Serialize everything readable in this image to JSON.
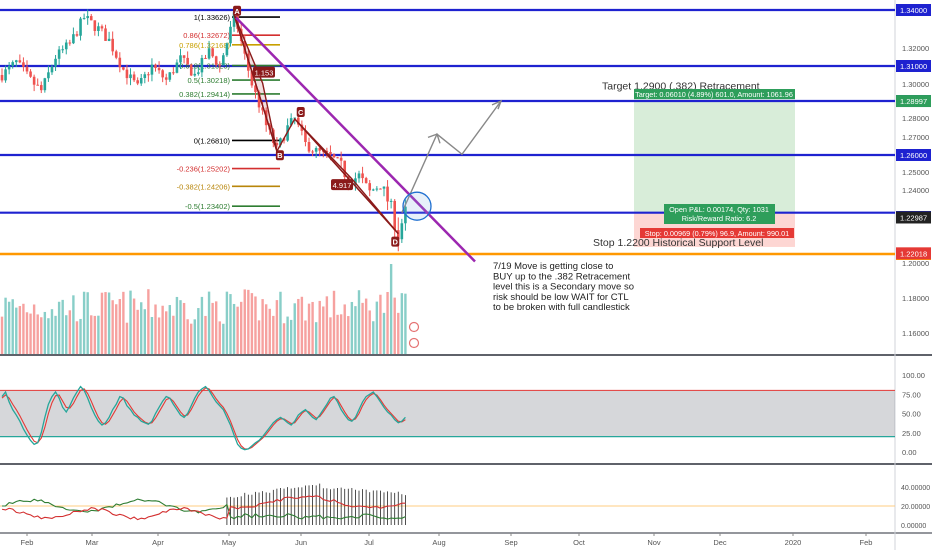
{
  "chart_data": {
    "type": "candlestick",
    "symbol_pair": "GBP/USD",
    "x_axis_labels": [
      "Feb",
      "Mar",
      "Apr",
      "May",
      "Jun",
      "Jul",
      "Aug",
      "Sep",
      "Oct",
      "Nov",
      "Dec",
      "2020",
      "Feb"
    ],
    "price_axis_ticks": [
      "1.34000",
      "1.32000",
      "1.31000",
      "1.30000",
      "1.29000",
      "1.28000",
      "1.27000",
      "1.26000",
      "1.25000",
      "1.24000",
      "1.23000",
      "1.22000",
      "1.20000",
      "1.18000",
      "1.16000"
    ],
    "price_range": [
      1.148,
      1.348
    ],
    "horizontal_levels": [
      {
        "price": 1.34,
        "label": "1.34000",
        "color": "#1e22d0"
      },
      {
        "price": 1.31,
        "label": "1.31000",
        "color": "#1e22d0"
      },
      {
        "price": 1.29,
        "label": "1.29000",
        "color": "#1e22d0"
      },
      {
        "price": 1.26,
        "label": "1.26000",
        "color": "#1e22d0"
      },
      {
        "price": 1.2316,
        "label": "1.23161",
        "color": "#1e22d0"
      },
      {
        "price": 1.22,
        "label": "1.22000",
        "color": "#ff9800"
      }
    ],
    "price_badges": [
      {
        "label": "1.28997",
        "price": 1.28997,
        "color": "#2e9e5b"
      },
      {
        "label": "1.23000",
        "price": 1.23,
        "color": "#1e22d0"
      },
      {
        "label": "1.22987",
        "price": 1.22987,
        "color": "#222222"
      },
      {
        "label": "1.22018",
        "price": 1.22018,
        "color": "#e53935"
      }
    ],
    "fibonacci": {
      "levels": [
        {
          "label": "1(1.33626)",
          "price": 1.33626,
          "color": "#000000"
        },
        {
          "label": "0.86(1.32672)",
          "price": 1.32672,
          "color": "#d32f2f"
        },
        {
          "label": "0.786(1.32168)",
          "price": 1.32168,
          "color": "#c8a000"
        },
        {
          "label": "0.618(1.31023)",
          "price": 1.31023,
          "color": "#2e7d32"
        },
        {
          "label": "0.5(1.30218)",
          "price": 1.30218,
          "color": "#2e7d32"
        },
        {
          "label": "0.382(1.29414)",
          "price": 1.29414,
          "color": "#2e7d32"
        },
        {
          "label": "0(1.26810)",
          "price": 1.2681,
          "color": "#000000"
        },
        {
          "label": "-0.236(1.25202)",
          "price": 1.25202,
          "color": "#d32f2f"
        },
        {
          "label": "-0.382(1.24206)",
          "price": 1.24206,
          "color": "#b8860b"
        },
        {
          "label": "-0.5(1.23402)",
          "price": 1.23402,
          "color": "#2e7d32"
        }
      ]
    },
    "pattern_points": [
      {
        "label": "A",
        "price": 1.3375
      },
      {
        "label": "B",
        "price": 1.2621
      },
      {
        "label": "C",
        "price": 1.2795
      },
      {
        "label": "D",
        "price": 1.2255
      }
    ],
    "pattern_ratios": [
      "1.153",
      "4.917"
    ],
    "trade": {
      "target_text": "Target: 0.06010 (4.89%) 601.0, Amount: 1061.96",
      "open_text": "Open P&L: 0.00174, Qty: 1031",
      "rr_text": "Risk/Reward Ratio: 6.2",
      "stop_text": "Stop: 0.00969 (0.79%) 96.9, Amount: 990.01",
      "entry": 1.2316,
      "target": 1.2917,
      "stop": 1.2219
    },
    "annotations": {
      "target_label": "Target 1.2900 (.382) Retracement",
      "stop_label": "Stop 1.2200 Historical Support Level",
      "note": [
        "7/19 Move is getting close to",
        "BUY up to the .382 Retracement",
        "level this is a Secondary move so",
        "risk should be low WAIT for CTL",
        "to be broken with full candlestick"
      ]
    },
    "stochastic": {
      "axis_ticks": [
        "100.00",
        "75.00",
        "50.00",
        "25.00",
        "0.00"
      ],
      "overbought": 80,
      "oversold": 20,
      "k": [
        72,
        78,
        65,
        55,
        48,
        40,
        30,
        22,
        15,
        10,
        12,
        25,
        45,
        62,
        72,
        78,
        70,
        58,
        52,
        60,
        70,
        78,
        85,
        80,
        70,
        58,
        48,
        40,
        35,
        38,
        45,
        55,
        62,
        72,
        70,
        60,
        55,
        48,
        45,
        40,
        38,
        36,
        40,
        50,
        58,
        66,
        72,
        70,
        62,
        55,
        48,
        45,
        50,
        60,
        70,
        78,
        82,
        85,
        80,
        72,
        65,
        60,
        55,
        45,
        35,
        22,
        10,
        5,
        3,
        4,
        8,
        12,
        15,
        20,
        26,
        32,
        38,
        42,
        45,
        42,
        38,
        35,
        40,
        48,
        52,
        55,
        50,
        45,
        42,
        48,
        55,
        62,
        70,
        72,
        65,
        55,
        48,
        42,
        40,
        45,
        55,
        65,
        72,
        75,
        78,
        72,
        65,
        58,
        52,
        48,
        42,
        38,
        40,
        45
      ],
      "d": [
        70,
        74,
        70,
        62,
        55,
        47,
        38,
        29,
        21,
        14,
        12,
        18,
        32,
        50,
        64,
        73,
        74,
        66,
        58,
        57,
        63,
        72,
        80,
        82,
        76,
        66,
        55,
        45,
        38,
        36,
        40,
        48,
        56,
        65,
        70,
        66,
        59,
        52,
        47,
        43,
        39,
        37,
        38,
        44,
        52,
        60,
        68,
        70,
        66,
        59,
        52,
        47,
        48,
        55,
        64,
        73,
        79,
        83,
        82,
        76,
        69,
        63,
        58,
        50,
        40,
        28,
        16,
        8,
        4,
        4,
        6,
        10,
        14,
        18,
        23,
        29,
        35,
        40,
        43,
        43,
        40,
        37,
        38,
        44,
        50,
        54,
        52,
        48,
        44,
        46,
        52,
        59,
        66,
        71,
        68,
        60,
        52,
        45,
        41,
        43,
        50,
        60,
        68,
        73,
        76,
        74,
        68,
        61,
        55,
        50,
        45,
        40,
        39,
        42
      ]
    },
    "adx_panel": {
      "axis_ticks": [
        "40.00000",
        "20.00000",
        "0.00000"
      ],
      "reference_level": 20
    }
  }
}
